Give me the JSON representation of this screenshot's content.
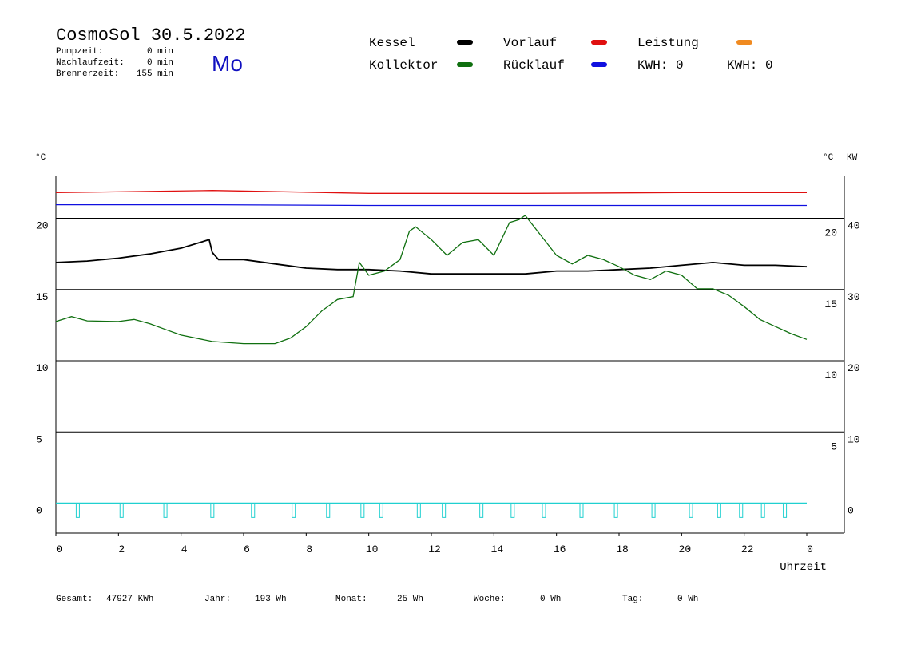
{
  "header": {
    "title": "CosmoSol 30.5.2022",
    "weekday": "Mo",
    "stats": [
      {
        "label": "Pumpzeit:",
        "value": "0 min"
      },
      {
        "label": "Nachlaufzeit:",
        "value": "0 min"
      },
      {
        "label": "Brennerzeit:",
        "value": "155 min"
      }
    ]
  },
  "kwh": [
    {
      "label": "KWH: 0",
      "color": "#e08a20"
    },
    {
      "label": "KWH: 0",
      "color": "#7a2a8a"
    }
  ],
  "footer": [
    {
      "label": "Gesamt:",
      "value": "47927 KWh"
    },
    {
      "label": "Jahr:",
      "value": "193 Wh"
    },
    {
      "label": "Monat:",
      "value": "25 Wh"
    },
    {
      "label": "Woche:",
      "value": "0 Wh"
    },
    {
      "label": "Tag:",
      "value": "0 Wh"
    }
  ],
  "chart_data": {
    "type": "line",
    "ylabel": "°C",
    "y_right_label": "°C",
    "y2label": "KW",
    "xlabel": "Uhrzeit",
    "xlim": [
      0,
      25.2
    ],
    "xticks": [
      0,
      2,
      4,
      6,
      8,
      10,
      12,
      14,
      16,
      18,
      20,
      22,
      {
        "value": 24,
        "label": "0"
      }
    ],
    "ylim": [
      -2.1,
      23
    ],
    "yticks": [
      0,
      5,
      10,
      15,
      20
    ],
    "y_right_ticks": [
      5,
      10,
      15,
      20
    ],
    "y2lim": [
      -4.2,
      46
    ],
    "y2ticks": [
      0,
      10,
      20,
      30,
      40
    ],
    "y2color": "#e08a20",
    "series": [
      {
        "name": "Kessel",
        "color": "#000000",
        "x": [
          0,
          1,
          2,
          3,
          4,
          4.9,
          5.0,
          5.2,
          6,
          7,
          8,
          9,
          10,
          11,
          12,
          13,
          14,
          15,
          16,
          17,
          18,
          19,
          20,
          21,
          22,
          23,
          24
        ],
        "values": [
          16.9,
          17.0,
          17.2,
          17.5,
          17.9,
          18.5,
          17.6,
          17.1,
          17.1,
          16.8,
          16.5,
          16.4,
          16.4,
          16.3,
          16.1,
          16.1,
          16.1,
          16.1,
          16.3,
          16.3,
          16.4,
          16.5,
          16.7,
          16.9,
          16.7,
          16.7,
          16.6
        ]
      },
      {
        "name": "Kollektor",
        "color": "#107010",
        "x": [
          0,
          0.5,
          1,
          2,
          2.5,
          3,
          3.5,
          4,
          5,
          6,
          7,
          7.5,
          8,
          8.5,
          9,
          9.5,
          9.7,
          10,
          10.5,
          11,
          11.3,
          11.5,
          12,
          12.5,
          13,
          13.5,
          14,
          14.5,
          14.8,
          15,
          15.5,
          16,
          16.5,
          17,
          17.5,
          18,
          18.5,
          19,
          19.5,
          20,
          20.5,
          21,
          21.5,
          22,
          22.5,
          23,
          23.5,
          24
        ],
        "values": [
          12.75,
          13.1,
          12.8,
          12.75,
          12.9,
          12.6,
          12.2,
          11.8,
          11.35,
          11.2,
          11.2,
          11.6,
          12.4,
          13.5,
          14.3,
          14.5,
          16.9,
          16.0,
          16.3,
          17.1,
          19.1,
          19.4,
          18.5,
          17.4,
          18.3,
          18.5,
          17.4,
          19.7,
          19.9,
          20.2,
          18.8,
          17.4,
          16.8,
          17.4,
          17.1,
          16.6,
          16.0,
          15.7,
          16.3,
          16.0,
          15.05,
          15.05,
          14.6,
          13.8,
          12.9,
          12.4,
          11.9,
          11.5
        ]
      },
      {
        "name": "Vorlauf",
        "color": "#e01010",
        "x": [
          0,
          5,
          10,
          15,
          20,
          24
        ],
        "values": [
          21.8,
          21.95,
          21.75,
          21.75,
          21.8,
          21.8
        ]
      },
      {
        "name": "Rücklauf",
        "color": "#1010e0",
        "x": [
          0,
          5,
          10,
          15,
          20,
          24
        ],
        "values": [
          20.95,
          20.95,
          20.9,
          20.9,
          20.9,
          20.9
        ]
      },
      {
        "name": "Leistung",
        "color": "#f08a20",
        "x": [],
        "values": []
      }
    ],
    "pulses": {
      "color": "#20d0d0",
      "x": [
        0.7,
        2.1,
        3.5,
        5.0,
        6.3,
        7.6,
        8.7,
        9.8,
        10.4,
        11.6,
        12.4,
        13.6,
        14.6,
        15.6,
        16.8,
        17.9,
        19.1,
        20.3,
        21.2,
        21.9,
        22.6,
        23.3
      ]
    }
  }
}
